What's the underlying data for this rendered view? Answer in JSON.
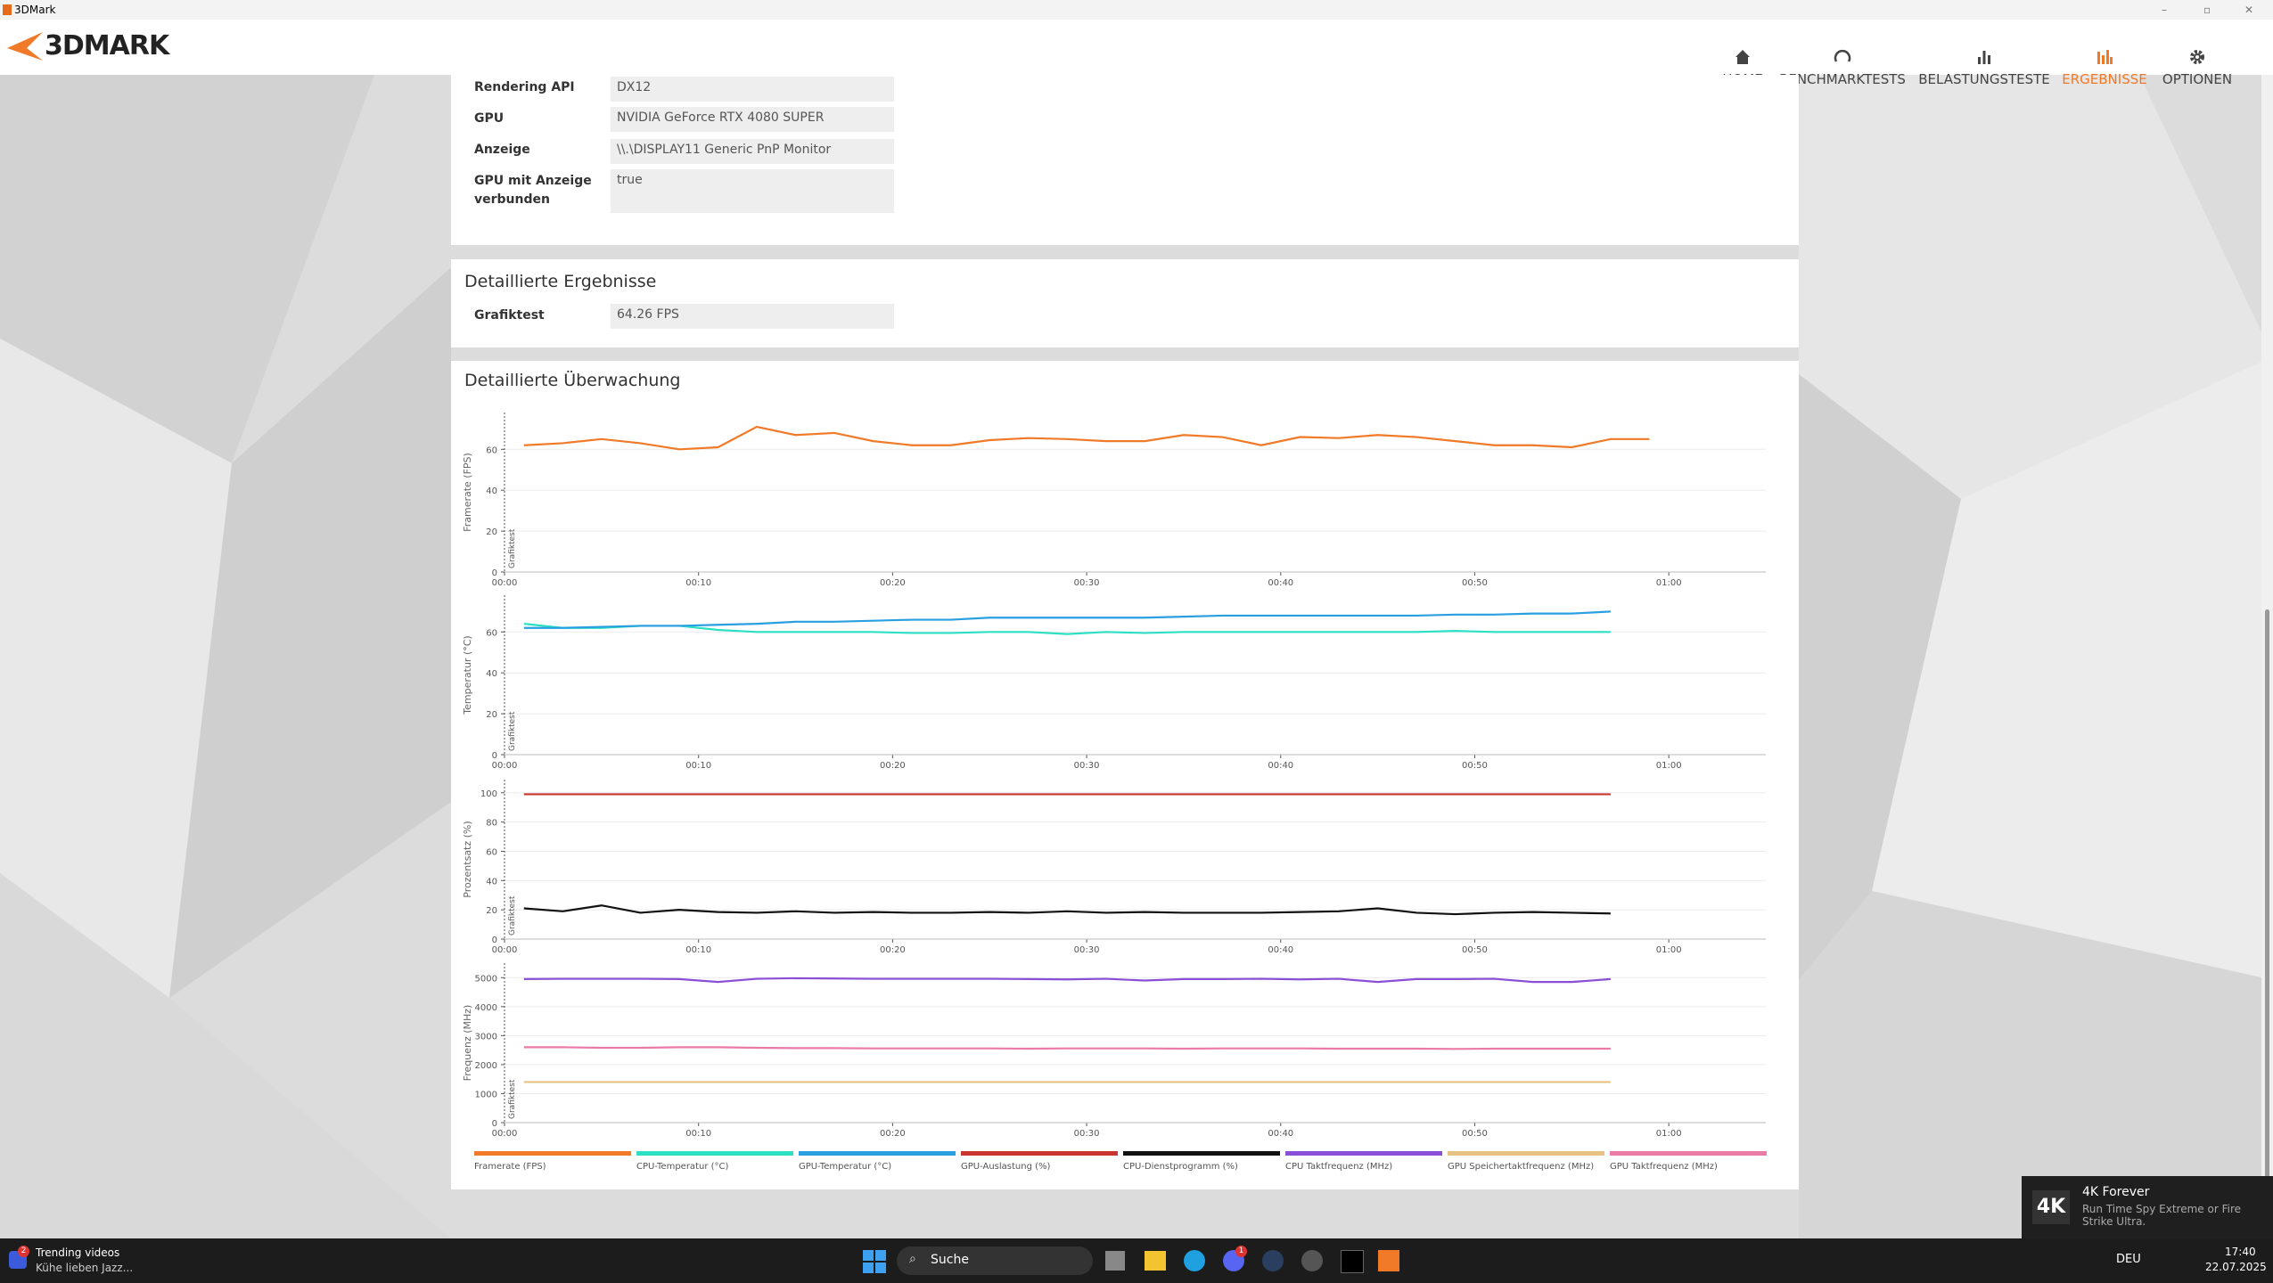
{
  "window": {
    "title": "3DMark"
  },
  "header": {
    "logo": "3DMARK",
    "nav": [
      "HOME",
      "BENCHMARKTESTS",
      "BELASTUNGSTESTE",
      "ERGEBNISSE",
      "OPTIONEN"
    ]
  },
  "system_info": {
    "rows": [
      {
        "label": "Rendering API",
        "value": "DX12"
      },
      {
        "label": "GPU",
        "value": "NVIDIA GeForce RTX 4080 SUPER"
      },
      {
        "label": "Anzeige",
        "value": "\\\\.\\DISPLAY11 Generic PnP Monitor"
      },
      {
        "label": "GPU mit Anzeige verbunden",
        "value": "true"
      }
    ]
  },
  "results": {
    "title": "Detaillierte Ergebnisse",
    "rows": [
      {
        "label": "Grafiktest",
        "value": "64.26 FPS"
      }
    ]
  },
  "monitoring": {
    "title": "Detaillierte Überwachung"
  },
  "chart_data": [
    {
      "type": "line",
      "y_label": "Framerate (FPS)",
      "annotation": "Grafiktest",
      "grid": true,
      "xlim": [
        0,
        65
      ],
      "xticks": [
        {
          "value": 0,
          "label": "00:00"
        },
        {
          "value": 10,
          "label": "00:10"
        },
        {
          "value": 20,
          "label": "00:20"
        },
        {
          "value": 30,
          "label": "00:30"
        },
        {
          "value": 40,
          "label": "00:40"
        },
        {
          "value": 50,
          "label": "00:50"
        },
        {
          "value": 60,
          "label": "01:00"
        }
      ],
      "ylim": [
        0,
        78
      ],
      "yticks": [
        0,
        20,
        40,
        60
      ],
      "x": [
        1,
        3,
        5,
        7,
        9,
        11,
        13,
        15,
        17,
        19,
        21,
        23,
        25,
        27,
        29,
        31,
        33,
        35,
        37,
        39,
        41,
        43,
        45,
        47,
        49,
        51,
        53,
        55,
        57,
        59
      ],
      "series": [
        {
          "name": "Framerate (FPS)",
          "color": "#f07a28",
          "values": [
            62,
            63,
            65,
            63,
            60,
            61,
            71,
            67,
            68,
            64,
            62,
            62,
            64.5,
            65.5,
            65,
            64,
            64,
            67,
            66,
            62,
            66,
            65.5,
            67,
            66,
            64,
            62,
            62,
            61,
            65,
            65
          ]
        }
      ]
    },
    {
      "type": "line",
      "y_label": "Temperatur (°C)",
      "annotation": "Grafiktest",
      "grid": true,
      "xlim": [
        0,
        65
      ],
      "xticks": [
        {
          "value": 0,
          "label": "00:00"
        },
        {
          "value": 10,
          "label": "00:10"
        },
        {
          "value": 20,
          "label": "00:20"
        },
        {
          "value": 30,
          "label": "00:30"
        },
        {
          "value": 40,
          "label": "00:40"
        },
        {
          "value": 50,
          "label": "00:50"
        },
        {
          "value": 60,
          "label": "01:00"
        }
      ],
      "ylim": [
        0,
        78
      ],
      "yticks": [
        0,
        20,
        40,
        60
      ],
      "x": [
        1,
        3,
        5,
        7,
        9,
        11,
        13,
        15,
        17,
        19,
        21,
        23,
        25,
        27,
        29,
        31,
        33,
        35,
        37,
        39,
        41,
        43,
        45,
        47,
        49,
        51,
        53,
        55,
        57
      ],
      "series": [
        {
          "name": "CPU-Temperatur (°C)",
          "color": "#2de0c4",
          "values": [
            64,
            62,
            62,
            63,
            63,
            61,
            60,
            60,
            60,
            60,
            59.5,
            59.5,
            60,
            60,
            59,
            60,
            59.5,
            60,
            60,
            60,
            60,
            60,
            60,
            60,
            60.5,
            60,
            60,
            60,
            60
          ]
        },
        {
          "name": "GPU-Temperatur (°C)",
          "color": "#2a9fe0",
          "values": [
            62,
            62,
            62.5,
            63,
            63,
            63.5,
            64,
            65,
            65,
            65.5,
            66,
            66,
            67,
            67,
            67,
            67,
            67,
            67.5,
            68,
            68,
            68,
            68,
            68,
            68,
            68.5,
            68.5,
            69,
            69,
            70
          ]
        }
      ]
    },
    {
      "type": "line",
      "y_label": "Prozentsatz (%)",
      "annotation": "Grafiktest",
      "grid": true,
      "xlim": [
        0,
        65
      ],
      "xticks": [
        {
          "value": 0,
          "label": "00:00"
        },
        {
          "value": 10,
          "label": "00:10"
        },
        {
          "value": 20,
          "label": "00:20"
        },
        {
          "value": 30,
          "label": "00:30"
        },
        {
          "value": 40,
          "label": "00:40"
        },
        {
          "value": 50,
          "label": "00:50"
        },
        {
          "value": 60,
          "label": "01:00"
        }
      ],
      "ylim": [
        0,
        109
      ],
      "yticks": [
        0,
        20,
        40,
        60,
        80,
        100
      ],
      "x": [
        1,
        3,
        5,
        7,
        9,
        11,
        13,
        15,
        17,
        19,
        21,
        23,
        25,
        27,
        29,
        31,
        33,
        35,
        37,
        39,
        41,
        43,
        45,
        47,
        49,
        51,
        53,
        55,
        57
      ],
      "series": [
        {
          "name": "GPU-Auslastung (%)",
          "color": "#c8342e",
          "values": [
            99,
            99,
            99,
            99,
            99,
            99,
            99,
            99,
            99,
            99,
            99,
            99,
            99,
            99,
            99,
            99,
            99,
            99,
            99,
            99,
            99,
            99,
            99,
            99,
            99,
            99,
            99,
            99,
            99
          ]
        },
        {
          "name": "CPU-Dienstprogramm (%)",
          "color": "#111111",
          "values": [
            21,
            19,
            23,
            18,
            20,
            18.5,
            18,
            19,
            18,
            18.5,
            18,
            18,
            18.5,
            18,
            19,
            18,
            18.5,
            18,
            18,
            18,
            18.5,
            19,
            21,
            18,
            17,
            18,
            18.5,
            18,
            17.5
          ]
        }
      ]
    },
    {
      "type": "line",
      "y_label": "Frequenz (MHz)",
      "annotation": "Grafiktest",
      "grid": true,
      "xlim": [
        0,
        65
      ],
      "xticks": [
        {
          "value": 0,
          "label": "00:00"
        },
        {
          "value": 10,
          "label": "00:10"
        },
        {
          "value": 20,
          "label": "00:20"
        },
        {
          "value": 30,
          "label": "00:30"
        },
        {
          "value": 40,
          "label": "00:40"
        },
        {
          "value": 50,
          "label": "00:50"
        },
        {
          "value": 60,
          "label": "01:00"
        }
      ],
      "ylim": [
        0,
        5500
      ],
      "yticks": [
        0,
        1000,
        2000,
        3000,
        4000,
        5000
      ],
      "x": [
        1,
        3,
        5,
        7,
        9,
        11,
        13,
        15,
        17,
        19,
        21,
        23,
        25,
        27,
        29,
        31,
        33,
        35,
        37,
        39,
        41,
        43,
        45,
        47,
        49,
        51,
        53,
        55,
        57
      ],
      "series": [
        {
          "name": "CPU Taktfrequenz (MHz)",
          "color": "#8a4fd6",
          "values": [
            4950,
            4960,
            4960,
            4960,
            4950,
            4850,
            4960,
            4980,
            4970,
            4960,
            4960,
            4960,
            4960,
            4950,
            4940,
            4960,
            4900,
            4950,
            4950,
            4960,
            4940,
            4960,
            4850,
            4950,
            4950,
            4960,
            4850,
            4850,
            4950
          ]
        },
        {
          "name": "GPU Speichertaktfrequenz (MHz)",
          "color": "#e6c383",
          "values": [
            1400,
            1400,
            1400,
            1400,
            1400,
            1400,
            1400,
            1400,
            1400,
            1400,
            1400,
            1400,
            1400,
            1400,
            1400,
            1400,
            1400,
            1400,
            1400,
            1400,
            1400,
            1400,
            1400,
            1400,
            1400,
            1400,
            1400,
            1400,
            1400
          ]
        },
        {
          "name": "GPU Taktfrequenz (MHz)",
          "color": "#ea7aa6",
          "values": [
            2600,
            2600,
            2580,
            2580,
            2600,
            2600,
            2580,
            2570,
            2570,
            2560,
            2560,
            2560,
            2560,
            2550,
            2560,
            2560,
            2560,
            2550,
            2560,
            2560,
            2560,
            2550,
            2550,
            2550,
            2540,
            2550,
            2550,
            2550,
            2550
          ]
        }
      ]
    }
  ],
  "notification": {
    "badge": "4K",
    "title": "4K Forever",
    "text": "Run Time Spy Extreme or Fire Strike Ultra."
  },
  "taskbar": {
    "widget_badge": "2",
    "widget_title": "Trending videos",
    "widget_text": "Kühe lieben Jazz...",
    "search": "Suche",
    "app_badge": "1",
    "language": "DEU",
    "time": "17:40",
    "date": "22.07.2025"
  }
}
